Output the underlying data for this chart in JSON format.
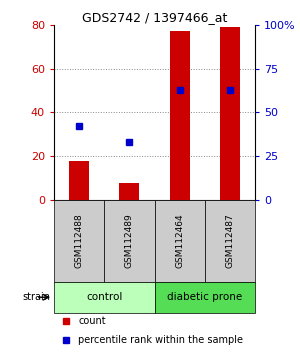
{
  "title": "GDS2742 / 1397466_at",
  "samples": [
    "GSM112488",
    "GSM112489",
    "GSM112464",
    "GSM112487"
  ],
  "groups": [
    {
      "name": "control",
      "indices": [
        0,
        1
      ],
      "color": "#bbffbb"
    },
    {
      "name": "diabetic prone",
      "indices": [
        2,
        3
      ],
      "color": "#55dd55"
    }
  ],
  "counts": [
    18,
    8,
    77,
    79
  ],
  "percentile_ranks": [
    42,
    33,
    63,
    63
  ],
  "bar_color": "#cc0000",
  "dot_color": "#0000cc",
  "left_ylim": [
    0,
    80
  ],
  "left_yticks": [
    0,
    20,
    40,
    60,
    80
  ],
  "right_ylim": [
    0,
    100
  ],
  "right_yticks": [
    0,
    25,
    50,
    75,
    100
  ],
  "right_yticklabels": [
    "0",
    "25",
    "50",
    "75",
    "100%"
  ],
  "left_tick_color": "#cc0000",
  "right_tick_color": "#0000cc",
  "grid_color": "#888888",
  "sample_box_color": "#cccccc",
  "strain_label": "strain",
  "legend_count_label": "count",
  "legend_pct_label": "percentile rank within the sample"
}
